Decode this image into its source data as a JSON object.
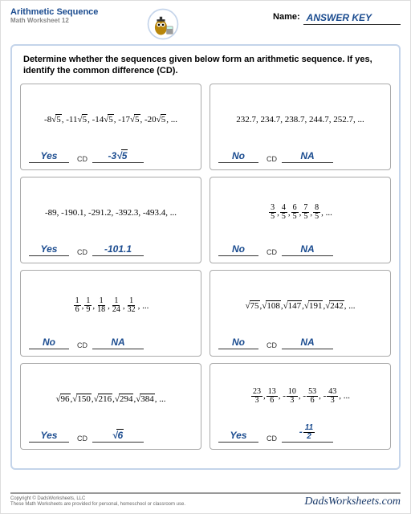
{
  "header": {
    "title": "Arithmetic Sequence",
    "subtitle": "Math Worksheet 12",
    "name_label": "Name:",
    "answer_key": "ANSWER KEY"
  },
  "instruction": "Determine whether the sequences given below form an arithmetic sequence. If yes, identify the common difference (CD).",
  "cd_label": "CD",
  "problems": [
    {
      "seq_html": "-8<span class='rad'></span><span class='sqrt'>5</span> , -11<span class='rad'></span><span class='sqrt'>5</span> , -14<span class='rad'></span><span class='sqrt'>5</span> , -17<span class='rad'></span><span class='sqrt'>5</span> , -20<span class='rad'></span><span class='sqrt'>5</span> , ...",
      "yn": "Yes",
      "cd_html": "-3<span class='rad'></span><span class='sqrt'>5</span>"
    },
    {
      "seq_html": "232.7, 234.7, 238.7, 244.7, 252.7, ...",
      "yn": "No",
      "cd_html": "NA"
    },
    {
      "seq_html": "-89, -190.1, -291.2, -392.3, -493.4, ...",
      "yn": "Yes",
      "cd_html": "-101.1"
    },
    {
      "seq_html": "<span class='frac'><span class='n'>3</span><span class='d'>5</span></span> , <span class='frac'><span class='n'>4</span><span class='d'>5</span></span> , <span class='frac'><span class='n'>6</span><span class='d'>5</span></span> , <span class='frac'><span class='n'>7</span><span class='d'>5</span></span> , <span class='frac'><span class='n'>8</span><span class='d'>5</span></span> , ...",
      "yn": "No",
      "cd_html": "NA"
    },
    {
      "seq_html": "<span class='frac'><span class='n'>1</span><span class='d'>6</span></span> , <span class='frac'><span class='n'>1</span><span class='d'>9</span></span> , <span class='frac'><span class='n'>1</span><span class='d'>18</span></span> , <span class='frac'><span class='n'>1</span><span class='d'>24</span></span> , <span class='frac'><span class='n'>1</span><span class='d'>32</span></span> , ...",
      "yn": "No",
      "cd_html": "NA"
    },
    {
      "seq_html": "<span class='rad'></span><span class='sqrt'>75</span> , <span class='rad'></span><span class='sqrt'>108</span> , <span class='rad'></span><span class='sqrt'>147</span> , <span class='rad'></span><span class='sqrt'>191</span> , <span class='rad'></span><span class='sqrt'>242</span> , ...",
      "yn": "No",
      "cd_html": "NA"
    },
    {
      "seq_html": "<span class='rad'></span><span class='sqrt'>96</span> , <span class='rad'></span><span class='sqrt'>150</span> , <span class='rad'></span><span class='sqrt'>216</span> , <span class='rad'></span><span class='sqrt'>294</span> , <span class='rad'></span><span class='sqrt'>384</span> , ...",
      "yn": "Yes",
      "cd_html": "<span class='rad'></span><span class='sqrt'>6</span>"
    },
    {
      "seq_html": "<span class='frac'><span class='n'>23</span><span class='d'>3</span></span> , <span class='frac'><span class='n'>13</span><span class='d'>6</span></span> , -<span class='frac'><span class='n'>10</span><span class='d'>3</span></span> , -<span class='frac'><span class='n'>53</span><span class='d'>6</span></span> , -<span class='frac'><span class='n'>43</span><span class='d'>3</span></span> , ...",
      "yn": "Yes",
      "cd_html": "-<span class='frac'><span class='n'>11</span><span class='d'>2</span></span>"
    }
  ],
  "footer": {
    "copyright": "Copyright © DadsWorksheets, LLC",
    "note": "These Math Worksheets are provided for personal, homeschool or classroom use.",
    "brand": "DadsWorksheets.com"
  },
  "colors": {
    "primary": "#1a4b8f",
    "frame": "#c4d4ea",
    "box_border": "#aaa"
  }
}
